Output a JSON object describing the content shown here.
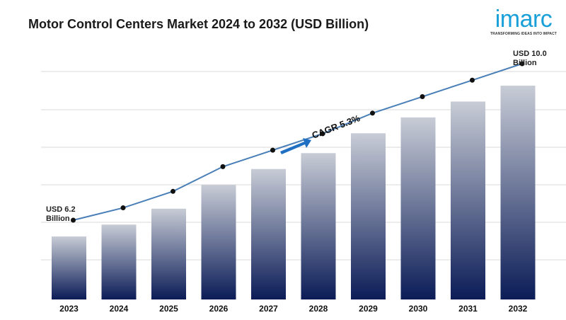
{
  "page_title": "Motor Control Centers Market 2024 to 2032 (USD Billion)",
  "logo": {
    "wordmark": "imarc",
    "tagline": "TRANSFORMING IDEAS INTO IMPACT"
  },
  "colors": {
    "bar_top": "#c8ccd6",
    "bar_bottom": "#0b1c57",
    "line": "#4a7fb7",
    "marker": "#111111",
    "arrow": "#1f6fc2",
    "gridline": "#d9d9d9"
  },
  "chart_data": {
    "type": "bar",
    "title": "Motor Control Centers Market 2024 to 2032 (USD Billion)",
    "categories": [
      "2023",
      "2024",
      "2025",
      "2026",
      "2027",
      "2028",
      "2029",
      "2030",
      "2031",
      "2032"
    ],
    "series": [
      {
        "values": [
          6.2,
          6.5,
          6.9,
          7.5,
          7.9,
          8.3,
          8.8,
          9.2,
          9.6,
          10.0
        ]
      }
    ],
    "trend_line": [
      6.2,
      6.5,
      6.9,
      7.5,
      7.9,
      8.3,
      8.8,
      9.2,
      9.6,
      10.0
    ],
    "annotations": {
      "start_label": [
        "USD 6.2",
        "Billion"
      ],
      "end_label": [
        "USD 10.0",
        "Billion"
      ],
      "cagr": "CAGR 5.3%"
    },
    "grid": true,
    "legend": "none"
  }
}
